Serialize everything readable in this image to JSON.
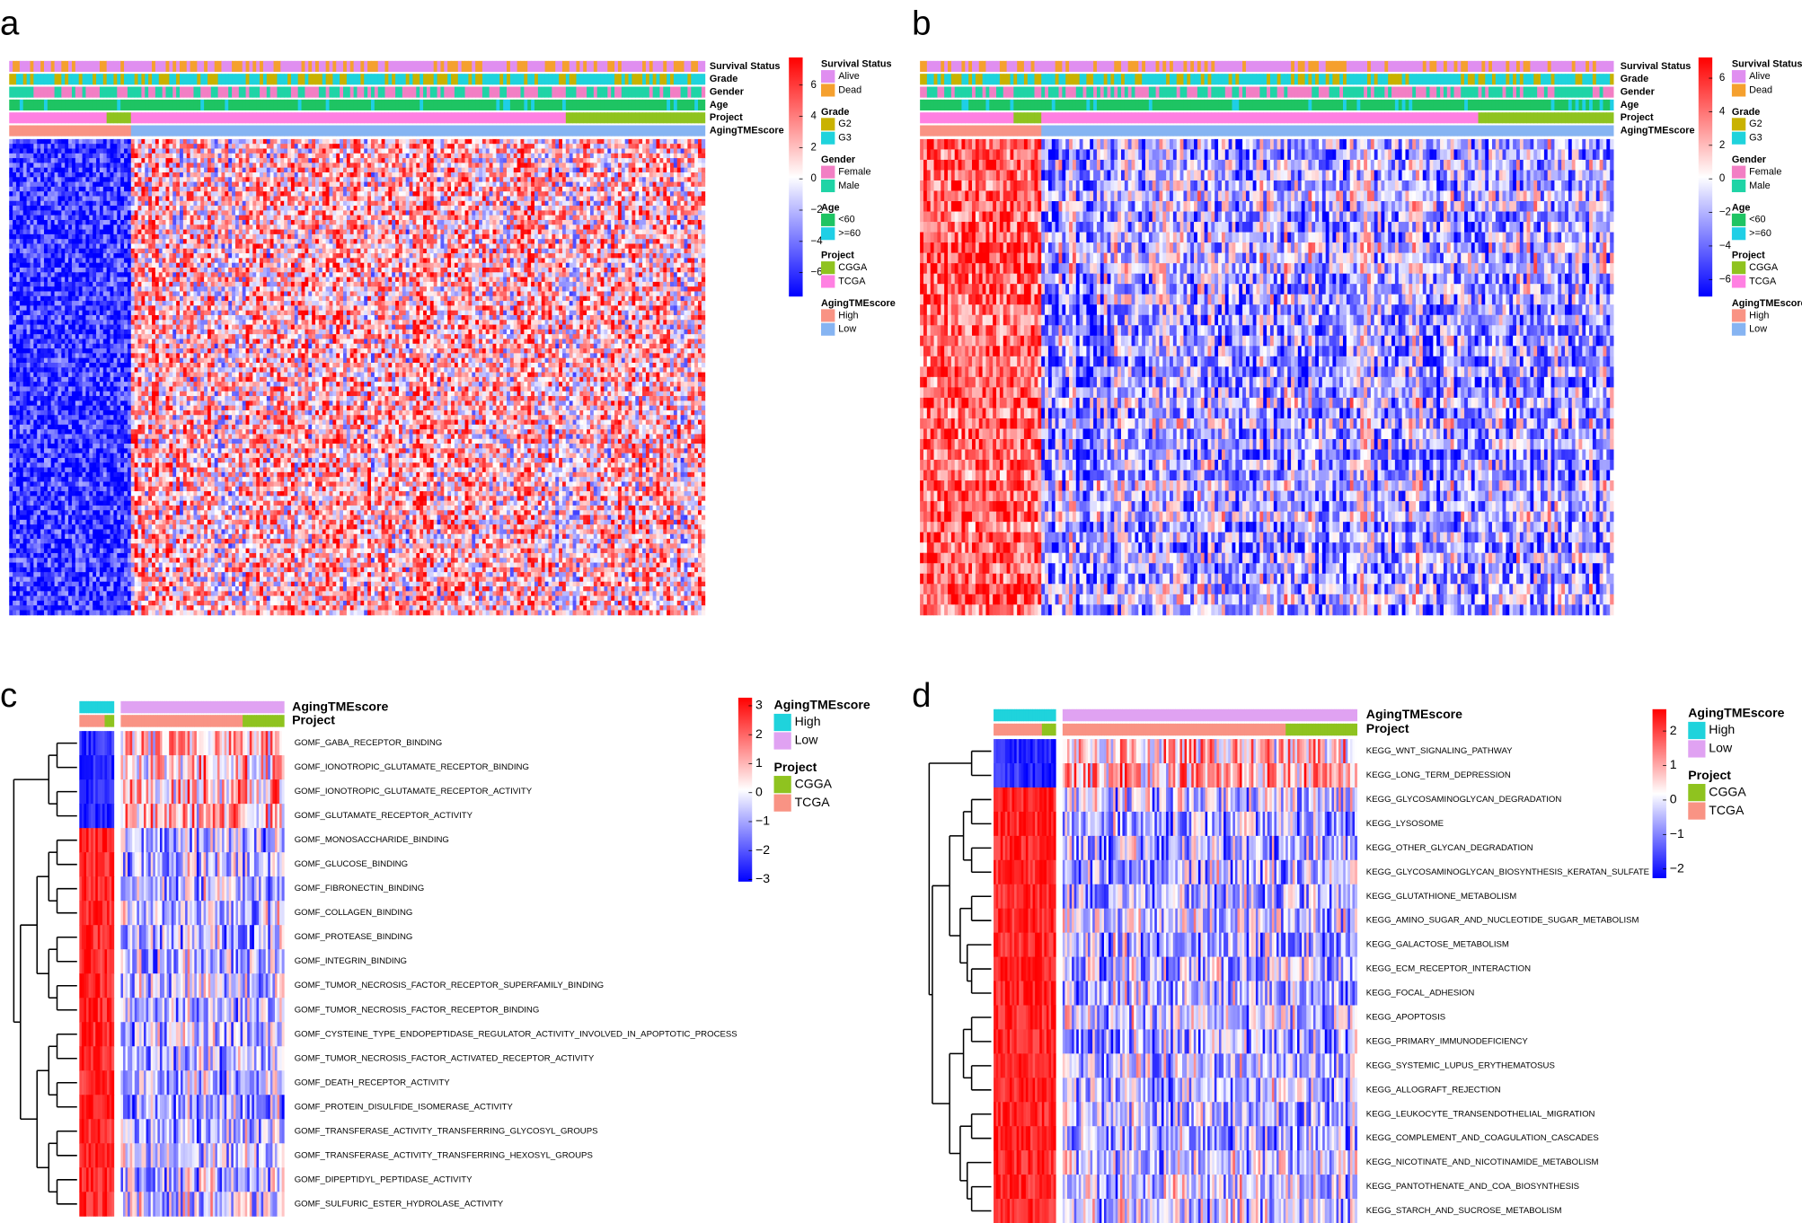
{
  "panels": [
    {
      "letter": "a",
      "annotations": [
        "Survival Status",
        "Grade",
        "Gender",
        "Age",
        "Project",
        "AgingTMEscore"
      ],
      "colorbar_ticks": [
        "6",
        "4",
        "2",
        "0",
        "−2",
        "−4",
        "−6"
      ],
      "legend": [
        {
          "title": "Survival Status",
          "items": [
            {
              "label": "Alive",
              "color": "#e08ef0"
            },
            {
              "label": "Dead",
              "color": "#f5a02e"
            }
          ]
        },
        {
          "title": "Grade",
          "items": [
            {
              "label": "G2",
              "color": "#c9b200"
            },
            {
              "label": "G3",
              "color": "#1fd3dc"
            }
          ]
        },
        {
          "title": "Gender",
          "items": [
            {
              "label": "Female",
              "color": "#f27fc4"
            },
            {
              "label": "Male",
              "color": "#1fd4a6"
            }
          ]
        },
        {
          "title": "Age",
          "items": [
            {
              "label": "<60",
              "color": "#1ec463"
            },
            {
              "label": ">=60",
              "color": "#1fcfe6"
            }
          ]
        },
        {
          "title": "Project",
          "items": [
            {
              "label": "CGGA",
              "color": "#8fc31f"
            },
            {
              "label": "TCGA",
              "color": "#ff80e2"
            }
          ]
        },
        {
          "title": "AgingTMEscore",
          "items": [
            {
              "label": "High",
              "color": "#f99384"
            },
            {
              "label": "Low",
              "color": "#86b4f2"
            }
          ]
        }
      ]
    },
    {
      "letter": "b",
      "annotations": [
        "Survival Status",
        "Grade",
        "Gender",
        "Age",
        "Project",
        "AgingTMEscore"
      ],
      "colorbar_ticks": [
        "6",
        "4",
        "2",
        "0",
        "−2",
        "−4",
        "−6"
      ],
      "legend": [
        {
          "title": "Survival Status",
          "items": [
            {
              "label": "Alive",
              "color": "#e08ef0"
            },
            {
              "label": "Dead",
              "color": "#f5a02e"
            }
          ]
        },
        {
          "title": "Grade",
          "items": [
            {
              "label": "G2",
              "color": "#c9b200"
            },
            {
              "label": "G3",
              "color": "#1fd3dc"
            }
          ]
        },
        {
          "title": "Gender",
          "items": [
            {
              "label": "Female",
              "color": "#f27fc4"
            },
            {
              "label": "Male",
              "color": "#1fd4a6"
            }
          ]
        },
        {
          "title": "Age",
          "items": [
            {
              "label": "<60",
              "color": "#1ec463"
            },
            {
              "label": ">=60",
              "color": "#1fcfe6"
            }
          ]
        },
        {
          "title": "Project",
          "items": [
            {
              "label": "CGGA",
              "color": "#8fc31f"
            },
            {
              "label": "TCGA",
              "color": "#ff80e2"
            }
          ]
        },
        {
          "title": "AgingTMEscore",
          "items": [
            {
              "label": "High",
              "color": "#f99384"
            },
            {
              "label": "Low",
              "color": "#86b4f2"
            }
          ]
        }
      ]
    },
    {
      "letter": "c",
      "annotations": [
        "AgingTMEscore",
        "Project"
      ],
      "rows": [
        "GOMF_GABA_RECEPTOR_BINDING",
        "GOMF_IONOTROPIC_GLUTAMATE_RECEPTOR_BINDING",
        "GOMF_IONOTROPIC_GLUTAMATE_RECEPTOR_ACTIVITY",
        "GOMF_GLUTAMATE_RECEPTOR_ACTIVITY",
        "GOMF_MONOSACCHARIDE_BINDING",
        "GOMF_GLUCOSE_BINDING",
        "GOMF_FIBRONECTIN_BINDING",
        "GOMF_COLLAGEN_BINDING",
        "GOMF_PROTEASE_BINDING",
        "GOMF_INTEGRIN_BINDING",
        "GOMF_TUMOR_NECROSIS_FACTOR_RECEPTOR_SUPERFAMILY_BINDING",
        "GOMF_TUMOR_NECROSIS_FACTOR_RECEPTOR_BINDING",
        "GOMF_CYSTEINE_TYPE_ENDOPEPTIDASE_REGULATOR_ACTIVITY_INVOLVED_IN_APOPTOTIC_PROCESS",
        "GOMF_TUMOR_NECROSIS_FACTOR_ACTIVATED_RECEPTOR_ACTIVITY",
        "GOMF_DEATH_RECEPTOR_ACTIVITY",
        "GOMF_PROTEIN_DISULFIDE_ISOMERASE_ACTIVITY",
        "GOMF_TRANSFERASE_ACTIVITY_TRANSFERRING_GLYCOSYL_GROUPS",
        "GOMF_TRANSFERASE_ACTIVITY_TRANSFERRING_HEXOSYL_GROUPS",
        "GOMF_DIPEPTIDYL_PEPTIDASE_ACTIVITY",
        "GOMF_SULFURIC_ESTER_HYDROLASE_ACTIVITY"
      ],
      "colorbar_ticks": [
        "3",
        "2",
        "1",
        "0",
        "−1",
        "−2",
        "−3"
      ],
      "legend": [
        {
          "title": "AgingTMEscore",
          "items": [
            {
              "label": "High",
              "color": "#1fd3dc"
            },
            {
              "label": "Low",
              "color": "#e0a2f2"
            }
          ]
        },
        {
          "title": "Project",
          "items": [
            {
              "label": "CGGA",
              "color": "#8fc31f"
            },
            {
              "label": "TCGA",
              "color": "#f99384"
            }
          ]
        }
      ]
    },
    {
      "letter": "d",
      "annotations": [
        "AgingTMEscore",
        "Project"
      ],
      "rows": [
        "KEGG_WNT_SIGNALING_PATHWAY",
        "KEGG_LONG_TERM_DEPRESSION",
        "KEGG_GLYCOSAMINOGLYCAN_DEGRADATION",
        "KEGG_LYSOSOME",
        "KEGG_OTHER_GLYCAN_DEGRADATION",
        "KEGG_GLYCOSAMINOGLYCAN_BIOSYNTHESIS_KERATAN_SULFATE",
        "KEGG_GLUTATHIONE_METABOLISM",
        "KEGG_AMINO_SUGAR_AND_NUCLEOTIDE_SUGAR_METABOLISM",
        "KEGG_GALACTOSE_METABOLISM",
        "KEGG_ECM_RECEPTOR_INTERACTION",
        "KEGG_FOCAL_ADHESION",
        "KEGG_APOPTOSIS",
        "KEGG_PRIMARY_IMMUNODEFICIENCY",
        "KEGG_SYSTEMIC_LUPUS_ERYTHEMATOSUS",
        "KEGG_ALLOGRAFT_REJECTION",
        "KEGG_LEUKOCYTE_TRANSENDOTHELIAL_MIGRATION",
        "KEGG_COMPLEMENT_AND_COAGULATION_CASCADES",
        "KEGG_NICOTINATE_AND_NICOTINAMIDE_METABOLISM",
        "KEGG_PANTOTHENATE_AND_COA_BIOSYNTHESIS",
        "KEGG_STARCH_AND_SUCROSE_METABOLISM"
      ],
      "colorbar_ticks": [
        "2",
        "1",
        "0",
        "−1",
        "−2"
      ],
      "legend": [
        {
          "title": "AgingTMEscore",
          "items": [
            {
              "label": "High",
              "color": "#1fd3dc"
            },
            {
              "label": "Low",
              "color": "#e0a2f2"
            }
          ]
        },
        {
          "title": "Project",
          "items": [
            {
              "label": "CGGA",
              "color": "#8fc31f"
            },
            {
              "label": "TCGA",
              "color": "#f99384"
            }
          ]
        }
      ]
    }
  ]
}
